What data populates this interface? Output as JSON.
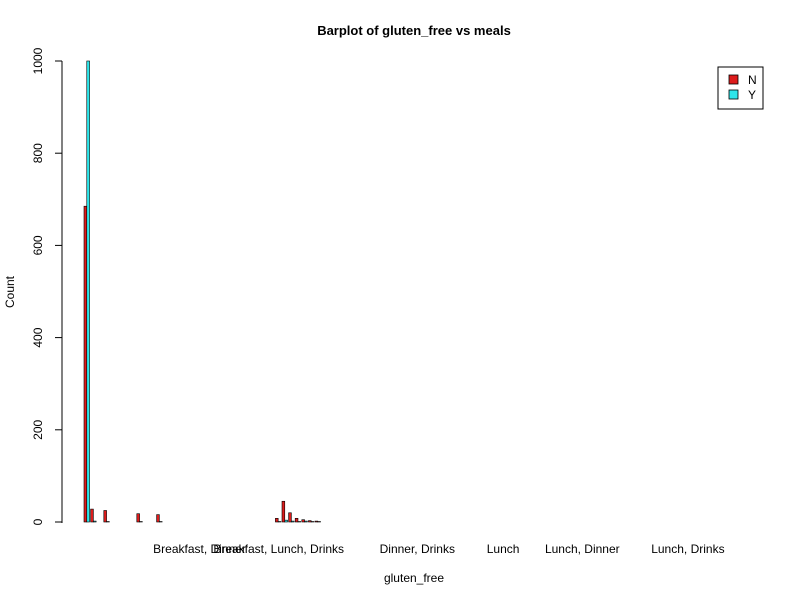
{
  "chart_data": {
    "type": "bar",
    "title": "Barplot of gluten_free vs meals",
    "xlabel": "gluten_free",
    "ylabel": "Count",
    "ylim": [
      0,
      1000
    ],
    "yticks": [
      0,
      200,
      400,
      600,
      800,
      1000
    ],
    "grid": false,
    "legend_position": "top-right",
    "colors": {
      "N": "#dd1c1c",
      "Y": "#2ee6ea",
      "bar_outline": "#000000"
    },
    "legend": [
      {
        "label": "N",
        "color": "#dd1c1c"
      },
      {
        "label": "Y",
        "color": "#2ee6ea"
      }
    ],
    "x_tick_labels": [
      {
        "label": "Breakfast, Dinner",
        "index": 17
      },
      {
        "label": "Breakfast, Lunch, Drinks",
        "index": 29
      },
      {
        "label": "Dinner, Drinks",
        "index": 50
      },
      {
        "label": "Lunch",
        "index": 63
      },
      {
        "label": "Lunch, Dinner",
        "index": 75
      },
      {
        "label": "Lunch, Drinks",
        "index": 91
      }
    ],
    "series": [
      {
        "name": "N",
        "values": [
          685,
          28,
          0,
          25,
          0,
          0,
          0,
          0,
          18,
          0,
          0,
          16,
          0,
          0,
          0,
          0,
          0,
          0,
          0,
          0,
          0,
          0,
          0,
          0,
          0,
          0,
          0,
          0,
          0,
          8,
          45,
          20,
          8,
          5,
          3,
          2,
          0,
          0,
          0,
          0,
          0,
          0,
          0,
          0,
          0,
          0,
          0,
          0,
          0,
          0,
          0,
          0,
          0,
          0,
          0,
          0,
          0,
          0,
          0,
          0,
          0,
          0,
          0,
          0,
          0,
          0,
          0,
          0,
          0,
          0,
          0,
          0,
          0,
          0,
          0,
          0,
          0,
          0,
          0,
          0,
          0,
          0,
          0,
          0,
          0,
          0,
          0,
          0,
          0,
          0,
          0,
          0,
          0,
          0,
          0,
          0,
          0,
          0,
          0,
          0
        ]
      },
      {
        "name": "Y",
        "values": [
          1000,
          2,
          0,
          1,
          0,
          0,
          0,
          0,
          1,
          0,
          0,
          1,
          0,
          0,
          0,
          0,
          0,
          0,
          0,
          0,
          0,
          0,
          0,
          0,
          0,
          0,
          0,
          0,
          0,
          1,
          4,
          2,
          1,
          2,
          1,
          1,
          0,
          0,
          0,
          0,
          0,
          0,
          0,
          0,
          0,
          0,
          0,
          0,
          0,
          0,
          0,
          0,
          0,
          0,
          0,
          0,
          0,
          0,
          0,
          0,
          0,
          0,
          0,
          0,
          0,
          0,
          0,
          0,
          0,
          0,
          0,
          0,
          0,
          0,
          0,
          0,
          0,
          0,
          0,
          0,
          0,
          0,
          0,
          0,
          0,
          0,
          0,
          0,
          0,
          0,
          0,
          0,
          0,
          0,
          0,
          0,
          0,
          0,
          0,
          0
        ]
      }
    ]
  }
}
